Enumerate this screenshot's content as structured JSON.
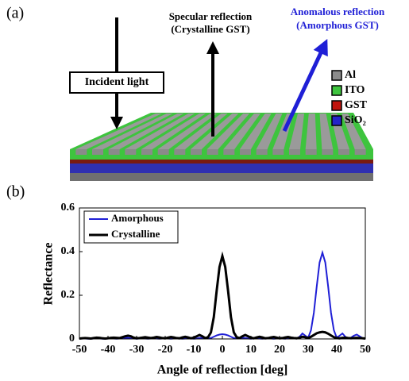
{
  "panel_a": {
    "label": "(a)",
    "incident": "Incident light",
    "specular": [
      "Specular reflection",
      "(Crystalline GST)"
    ],
    "anomalous": [
      "Anomalous reflection",
      "(Amorphous GST)"
    ],
    "legend": [
      {
        "name": "Al",
        "color": "#8c8c8c"
      },
      {
        "name": "ITO",
        "color": "#3ec43e"
      },
      {
        "name": "GST",
        "color": "#c0140e"
      },
      {
        "name": "SiO₂",
        "color": "#2424c8"
      }
    ]
  },
  "panel_b_label": "(b)",
  "chart_data": {
    "type": "line",
    "xlabel": "Angle of reflection [deg]",
    "ylabel": "Reflectance",
    "xlim": [
      -50,
      50
    ],
    "xticks": [
      -50,
      -40,
      -30,
      -20,
      -10,
      0,
      10,
      20,
      30,
      40,
      50
    ],
    "ylim": [
      0,
      0.6
    ],
    "yticks": [
      0,
      0.2,
      0.4,
      0.6
    ],
    "legend": "upper left",
    "x": [
      -50,
      -49,
      -48,
      -47,
      -46,
      -45,
      -44,
      -43,
      -42,
      -41,
      -40,
      -39,
      -38,
      -37,
      -36,
      -35,
      -34,
      -33,
      -32,
      -31,
      -30,
      -29,
      -28,
      -27,
      -26,
      -25,
      -24,
      -23,
      -22,
      -21,
      -20,
      -19,
      -18,
      -17,
      -16,
      -15,
      -14,
      -13,
      -12,
      -11,
      -10,
      -9,
      -8,
      -7,
      -6,
      -5,
      -4,
      -3,
      -2,
      -1,
      0,
      1,
      2,
      3,
      4,
      5,
      6,
      7,
      8,
      9,
      10,
      11,
      12,
      13,
      14,
      15,
      16,
      17,
      18,
      19,
      20,
      21,
      22,
      23,
      24,
      25,
      26,
      27,
      28,
      29,
      30,
      31,
      32,
      33,
      34,
      35,
      36,
      37,
      38,
      39,
      40,
      41,
      42,
      43,
      44,
      45,
      46,
      47,
      48,
      49,
      50
    ],
    "series": [
      {
        "name": "Amorphous",
        "color": "#1f1fd6",
        "values": [
          0.001,
          0.002,
          0.002,
          0.001,
          0.001,
          0.002,
          0.003,
          0.002,
          0.001,
          0.001,
          0.002,
          0.003,
          0.002,
          0.001,
          0.002,
          0.004,
          0.006,
          0.005,
          0.003,
          0.002,
          0.001,
          0.002,
          0.003,
          0.002,
          0.001,
          0.002,
          0.003,
          0.002,
          0.001,
          0.002,
          0.003,
          0.002,
          0.001,
          0.002,
          0.003,
          0.002,
          0.001,
          0.002,
          0.003,
          0.002,
          0.001,
          0.002,
          0.004,
          0.005,
          0.003,
          0.002,
          0.004,
          0.01,
          0.016,
          0.02,
          0.022,
          0.02,
          0.016,
          0.01,
          0.004,
          0.002,
          0.003,
          0.005,
          0.004,
          0.002,
          0.001,
          0.002,
          0.003,
          0.002,
          0.001,
          0.002,
          0.003,
          0.002,
          0.001,
          0.002,
          0.003,
          0.002,
          0.001,
          0.003,
          0.005,
          0.004,
          0.002,
          0.01,
          0.025,
          0.015,
          0.005,
          0.04,
          0.12,
          0.24,
          0.35,
          0.395,
          0.35,
          0.24,
          0.12,
          0.04,
          0.005,
          0.015,
          0.025,
          0.01,
          0.003,
          0.006,
          0.015,
          0.02,
          0.012,
          0.004,
          0.001
        ]
      },
      {
        "name": "Crystalline",
        "color": "#000000",
        "values": [
          0.002,
          0.003,
          0.004,
          0.003,
          0.002,
          0.004,
          0.006,
          0.005,
          0.003,
          0.002,
          0.003,
          0.005,
          0.006,
          0.005,
          0.004,
          0.008,
          0.012,
          0.015,
          0.012,
          0.006,
          0.003,
          0.004,
          0.006,
          0.008,
          0.006,
          0.004,
          0.006,
          0.009,
          0.007,
          0.004,
          0.003,
          0.006,
          0.009,
          0.007,
          0.004,
          0.003,
          0.007,
          0.01,
          0.007,
          0.003,
          0.006,
          0.012,
          0.018,
          0.012,
          0.004,
          0.008,
          0.03,
          0.1,
          0.22,
          0.33,
          0.38,
          0.33,
          0.22,
          0.1,
          0.03,
          0.008,
          0.004,
          0.012,
          0.018,
          0.012,
          0.006,
          0.003,
          0.007,
          0.01,
          0.007,
          0.003,
          0.004,
          0.007,
          0.009,
          0.006,
          0.003,
          0.004,
          0.007,
          0.009,
          0.006,
          0.004,
          0.003,
          0.006,
          0.01,
          0.008,
          0.004,
          0.01,
          0.018,
          0.026,
          0.03,
          0.032,
          0.03,
          0.024,
          0.016,
          0.008,
          0.004,
          0.003,
          0.005,
          0.006,
          0.004,
          0.003,
          0.004,
          0.005,
          0.004,
          0.003,
          0.002
        ]
      }
    ]
  }
}
